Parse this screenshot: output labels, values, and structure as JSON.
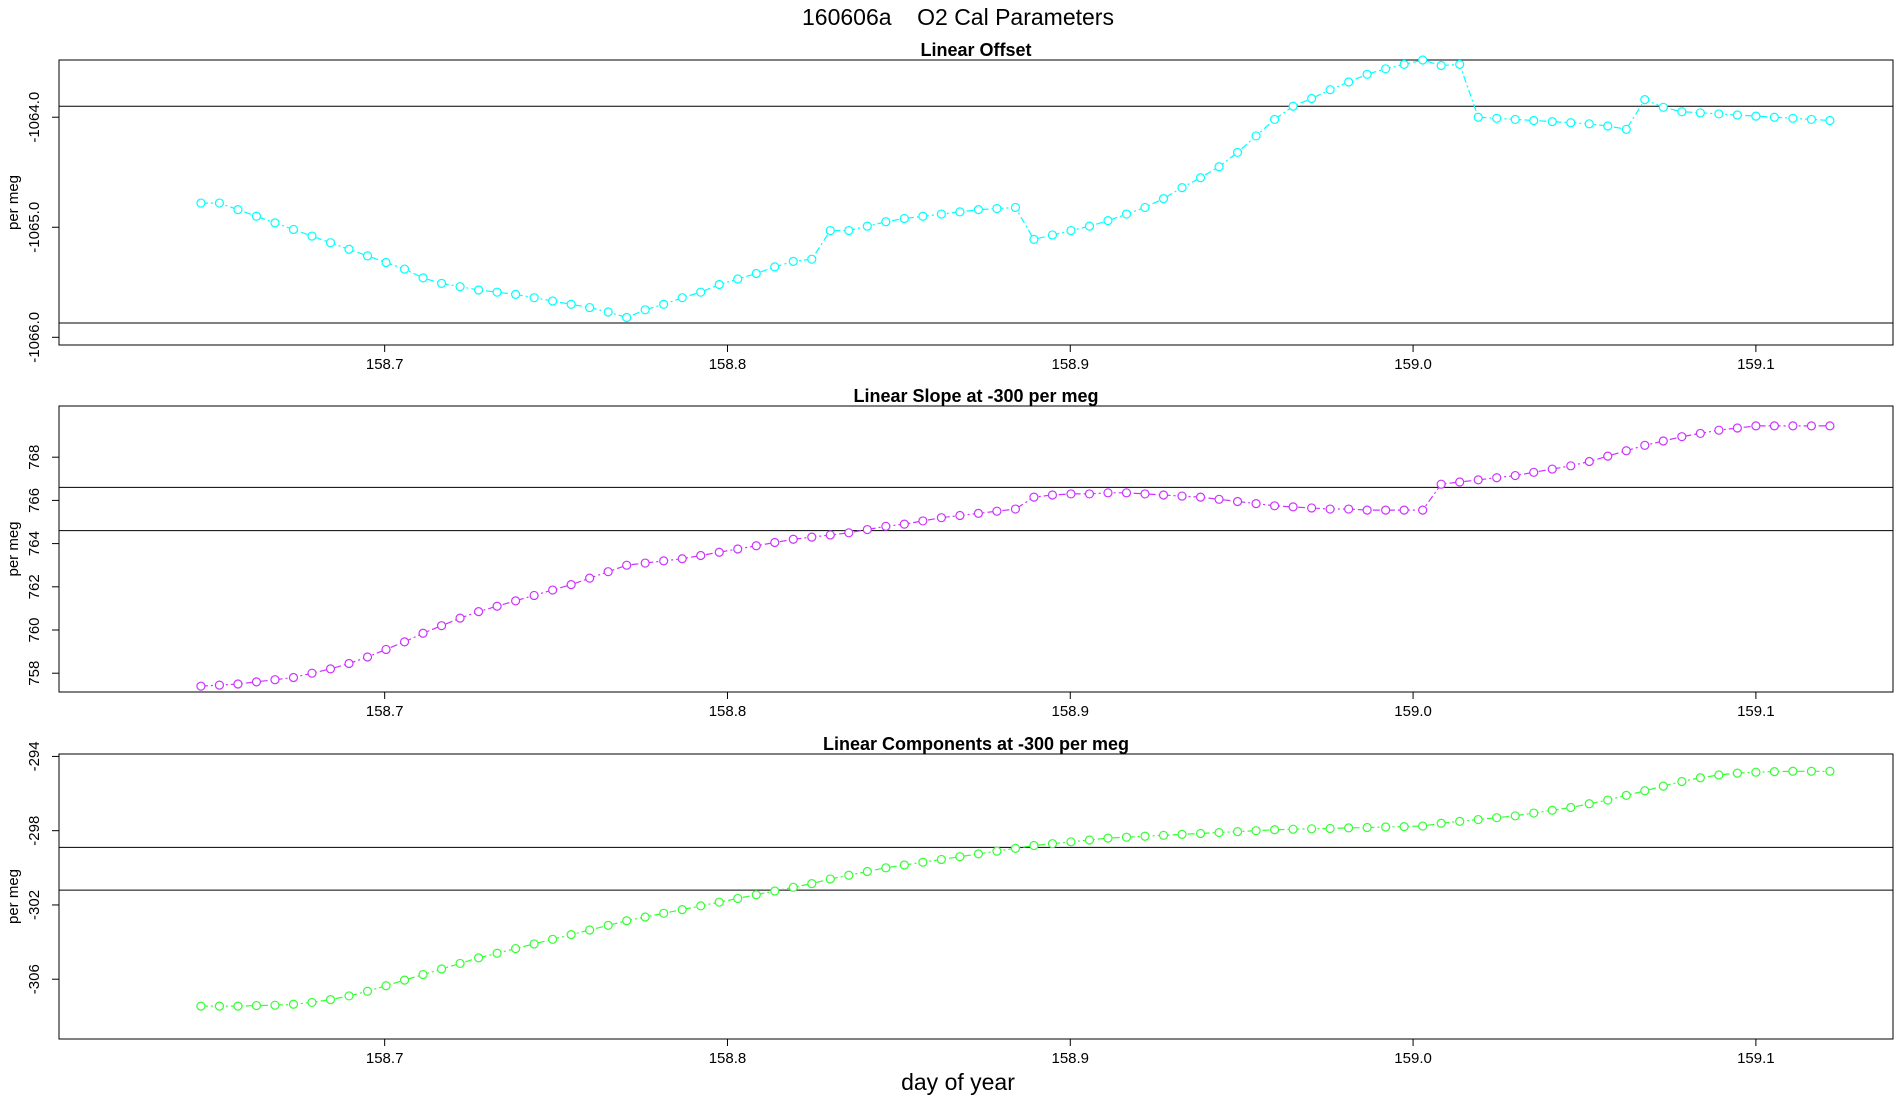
{
  "title": "160606a    O2 Cal Parameters",
  "xlabel": "day of year",
  "chart_data": [
    {
      "type": "scatter",
      "title": "Linear Offset",
      "ylabel": "per meg",
      "color": "#00ffff",
      "xlim": [
        158.605,
        159.14
      ],
      "ylim": [
        -1066.07,
        -1063.48
      ],
      "xticks": [
        "158.7",
        "158.8",
        "158.9",
        "159.0",
        "159.1"
      ],
      "yticks": [
        "-1066.0",
        "-1065.0",
        "-1064.0"
      ],
      "hlines": [
        -1063.9,
        -1065.87
      ],
      "x": [
        158.6464,
        158.6518,
        158.6572,
        158.6626,
        158.668,
        158.6734,
        158.6788,
        158.6842,
        158.6896,
        158.695,
        158.7004,
        158.7058,
        158.7112,
        158.7166,
        158.722,
        158.7274,
        158.7328,
        158.7382,
        158.7436,
        158.749,
        158.7544,
        158.7598,
        158.7652,
        158.7706,
        158.776,
        158.7814,
        158.7868,
        158.7922,
        158.7976,
        158.803,
        158.8084,
        158.8138,
        158.8192,
        158.8246,
        158.83,
        158.8354,
        158.8408,
        158.8462,
        158.8516,
        158.857,
        158.8624,
        158.8678,
        158.8732,
        158.8786,
        158.884,
        158.8894,
        158.8948,
        158.9002,
        158.9056,
        158.911,
        158.9164,
        158.9218,
        158.9272,
        158.9326,
        158.938,
        158.9434,
        158.9488,
        158.9542,
        158.9596,
        158.965,
        158.9704,
        158.9758,
        158.9812,
        158.9866,
        158.992,
        158.9974,
        159.0028,
        159.0082,
        159.0136,
        159.019,
        159.0244,
        159.0298,
        159.0352,
        159.0406,
        159.046,
        159.0514,
        159.0568,
        159.0622,
        159.0676,
        159.073,
        159.0784,
        159.0838,
        159.0892,
        159.0946,
        159.1,
        159.1054,
        159.1108,
        159.1162,
        159.1216
      ],
      "y": [
        -1064.78,
        -1064.78,
        -1064.84,
        -1064.9,
        -1064.96,
        -1065.02,
        -1065.08,
        -1065.14,
        -1065.2,
        -1065.26,
        -1065.32,
        -1065.38,
        -1065.46,
        -1065.51,
        -1065.54,
        -1065.57,
        -1065.59,
        -1065.61,
        -1065.64,
        -1065.67,
        -1065.7,
        -1065.73,
        -1065.77,
        -1065.82,
        -1065.75,
        -1065.7,
        -1065.64,
        -1065.59,
        -1065.52,
        -1065.47,
        -1065.42,
        -1065.36,
        -1065.31,
        -1065.29,
        -1065.03,
        -1065.03,
        -1064.99,
        -1064.95,
        -1064.92,
        -1064.9,
        -1064.88,
        -1064.86,
        -1064.84,
        -1064.83,
        -1064.82,
        -1065.11,
        -1065.07,
        -1065.03,
        -1064.99,
        -1064.94,
        -1064.88,
        -1064.82,
        -1064.74,
        -1064.64,
        -1064.55,
        -1064.45,
        -1064.32,
        -1064.17,
        -1064.02,
        -1063.9,
        -1063.83,
        -1063.75,
        -1063.68,
        -1063.61,
        -1063.56,
        -1063.52,
        -1063.48,
        -1063.53,
        -1063.52,
        -1064.0,
        -1064.01,
        -1064.02,
        -1064.03,
        -1064.04,
        -1064.05,
        -1064.06,
        -1064.08,
        -1064.11,
        -1063.84,
        -1063.91,
        -1063.95,
        -1063.96,
        -1063.97,
        -1063.98,
        -1063.99,
        -1064.0,
        -1064.01,
        -1064.02,
        -1064.03
      ]
    },
    {
      "type": "scatter",
      "title": "Linear Slope at -300 per meg",
      "ylabel": "per meg",
      "color": "#cc33ff",
      "xlim": [
        158.605,
        159.14
      ],
      "ylim": [
        757.13,
        770.37
      ],
      "xticks": [
        "158.7",
        "158.8",
        "158.9",
        "159.0",
        "159.1"
      ],
      "yticks": [
        "758",
        "760",
        "762",
        "764",
        "766",
        "768"
      ],
      "hlines": [
        766.6,
        764.6
      ],
      "x": [
        158.6464,
        158.6518,
        158.6572,
        158.6626,
        158.668,
        158.6734,
        158.6788,
        158.6842,
        158.6896,
        158.695,
        158.7004,
        158.7058,
        158.7112,
        158.7166,
        158.722,
        158.7274,
        158.7328,
        158.7382,
        158.7436,
        158.749,
        158.7544,
        158.7598,
        158.7652,
        158.7706,
        158.776,
        158.7814,
        158.7868,
        158.7922,
        158.7976,
        158.803,
        158.8084,
        158.8138,
        158.8192,
        158.8246,
        158.83,
        158.8354,
        158.8408,
        158.8462,
        158.8516,
        158.857,
        158.8624,
        158.8678,
        158.8732,
        158.8786,
        158.884,
        158.8894,
        158.8948,
        158.9002,
        158.9056,
        158.911,
        158.9164,
        158.9218,
        158.9272,
        158.9326,
        158.938,
        158.9434,
        158.9488,
        158.9542,
        158.9596,
        158.965,
        158.9704,
        158.9758,
        158.9812,
        158.9866,
        158.992,
        158.9974,
        159.0028,
        159.0082,
        159.0136,
        159.019,
        159.0244,
        159.0298,
        159.0352,
        159.0406,
        159.046,
        159.0514,
        159.0568,
        159.0622,
        159.0676,
        159.073,
        159.0784,
        159.0838,
        159.0892,
        159.0946,
        159.1,
        159.1054,
        159.1108,
        159.1162,
        159.1216
      ],
      "y": [
        757.4,
        757.45,
        757.5,
        757.6,
        757.7,
        757.8,
        758.0,
        758.2,
        758.45,
        758.75,
        759.1,
        759.45,
        759.85,
        760.2,
        760.55,
        760.85,
        761.1,
        761.35,
        761.6,
        761.85,
        762.1,
        762.4,
        762.7,
        763.0,
        763.1,
        763.2,
        763.3,
        763.45,
        763.6,
        763.75,
        763.9,
        764.05,
        764.2,
        764.3,
        764.4,
        764.5,
        764.65,
        764.8,
        764.9,
        765.05,
        765.2,
        765.3,
        765.4,
        765.5,
        765.6,
        766.15,
        766.25,
        766.3,
        766.3,
        766.35,
        766.35,
        766.3,
        766.25,
        766.2,
        766.15,
        766.05,
        765.95,
        765.85,
        765.75,
        765.7,
        765.65,
        765.6,
        765.6,
        765.55,
        765.55,
        765.55,
        765.55,
        766.75,
        766.85,
        766.95,
        767.05,
        767.15,
        767.3,
        767.45,
        767.6,
        767.8,
        768.05,
        768.3,
        768.55,
        768.75,
        768.95,
        769.1,
        769.25,
        769.35,
        769.45,
        769.45,
        769.45,
        769.45,
        769.45
      ]
    },
    {
      "type": "scatter",
      "title": "Linear Components at -300 per meg",
      "ylabel": "per meg",
      "color": "#33ff33",
      "xlim": [
        158.605,
        159.14
      ],
      "ylim": [
        -309.22,
        -293.87
      ],
      "xticks": [
        "158.7",
        "158.8",
        "158.9",
        "159.0",
        "159.1"
      ],
      "yticks": [
        "-306",
        "-302",
        "-298",
        "-294"
      ],
      "hlines": [
        -298.9,
        -301.2
      ],
      "x": [
        158.6464,
        158.6518,
        158.6572,
        158.6626,
        158.668,
        158.6734,
        158.6788,
        158.6842,
        158.6896,
        158.695,
        158.7004,
        158.7058,
        158.7112,
        158.7166,
        158.722,
        158.7274,
        158.7328,
        158.7382,
        158.7436,
        158.749,
        158.7544,
        158.7598,
        158.7652,
        158.7706,
        158.776,
        158.7814,
        158.7868,
        158.7922,
        158.7976,
        158.803,
        158.8084,
        158.8138,
        158.8192,
        158.8246,
        158.83,
        158.8354,
        158.8408,
        158.8462,
        158.8516,
        158.857,
        158.8624,
        158.8678,
        158.8732,
        158.8786,
        158.884,
        158.8894,
        158.8948,
        158.9002,
        158.9056,
        158.911,
        158.9164,
        158.9218,
        158.9272,
        158.9326,
        158.938,
        158.9434,
        158.9488,
        158.9542,
        158.9596,
        158.965,
        158.9704,
        158.9758,
        158.9812,
        158.9866,
        158.992,
        158.9974,
        159.0028,
        159.0082,
        159.0136,
        159.019,
        159.0244,
        159.0298,
        159.0352,
        159.0406,
        159.046,
        159.0514,
        159.0568,
        159.0622,
        159.0676,
        159.073,
        159.0784,
        159.0838,
        159.0892,
        159.0946,
        159.1,
        159.1054,
        159.1108,
        159.1162,
        159.1216
      ],
      "y": [
        -307.45,
        -307.45,
        -307.45,
        -307.42,
        -307.4,
        -307.35,
        -307.25,
        -307.1,
        -306.9,
        -306.65,
        -306.35,
        -306.05,
        -305.75,
        -305.45,
        -305.15,
        -304.85,
        -304.6,
        -304.35,
        -304.1,
        -303.85,
        -303.6,
        -303.35,
        -303.1,
        -302.85,
        -302.65,
        -302.45,
        -302.25,
        -302.05,
        -301.85,
        -301.65,
        -301.45,
        -301.25,
        -301.05,
        -300.85,
        -300.6,
        -300.4,
        -300.2,
        -300.0,
        -299.85,
        -299.7,
        -299.55,
        -299.4,
        -299.25,
        -299.1,
        -298.95,
        -298.8,
        -298.7,
        -298.6,
        -298.5,
        -298.4,
        -298.35,
        -298.3,
        -298.25,
        -298.2,
        -298.15,
        -298.1,
        -298.05,
        -298.0,
        -297.95,
        -297.92,
        -297.9,
        -297.88,
        -297.85,
        -297.83,
        -297.8,
        -297.78,
        -297.75,
        -297.6,
        -297.5,
        -297.4,
        -297.3,
        -297.2,
        -297.05,
        -296.9,
        -296.75,
        -296.55,
        -296.35,
        -296.1,
        -295.85,
        -295.6,
        -295.35,
        -295.15,
        -295.0,
        -294.9,
        -294.85,
        -294.82,
        -294.8,
        -294.8,
        -294.8
      ]
    }
  ]
}
